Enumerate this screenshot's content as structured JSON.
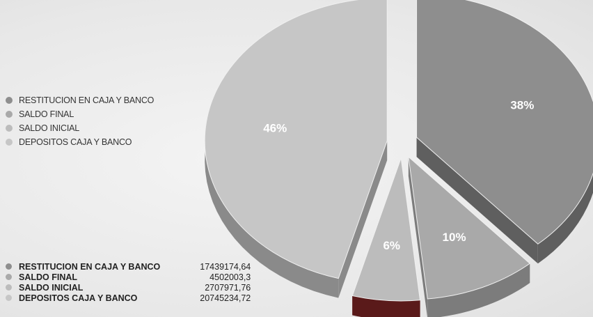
{
  "chart_data": {
    "type": "pie",
    "title": "",
    "categories": [
      "RESTITUCION EN CAJA Y BANCO",
      "SALDO FINAL",
      "SALDO INICIAL",
      "DEPOSITOS CAJA Y BANCO"
    ],
    "values": [
      17439174.64,
      4502003.3,
      2707971.76,
      20745234.72
    ],
    "value_labels": [
      "17439174,64",
      "4502003,3",
      "2707971,76",
      "20745234,72"
    ],
    "percent_labels": [
      "38%",
      "10%",
      "6%",
      "46%"
    ],
    "colors": [
      "#8e8e8e",
      "#a9a9a9",
      "#bcbcbc",
      "#c6c6c6"
    ],
    "side_colors": [
      "#5f5f5f",
      "#7c7c7c",
      "#5a1a1a",
      "#8a8a8a"
    ],
    "exploded": true,
    "style": "3d",
    "legend_position": "left"
  }
}
